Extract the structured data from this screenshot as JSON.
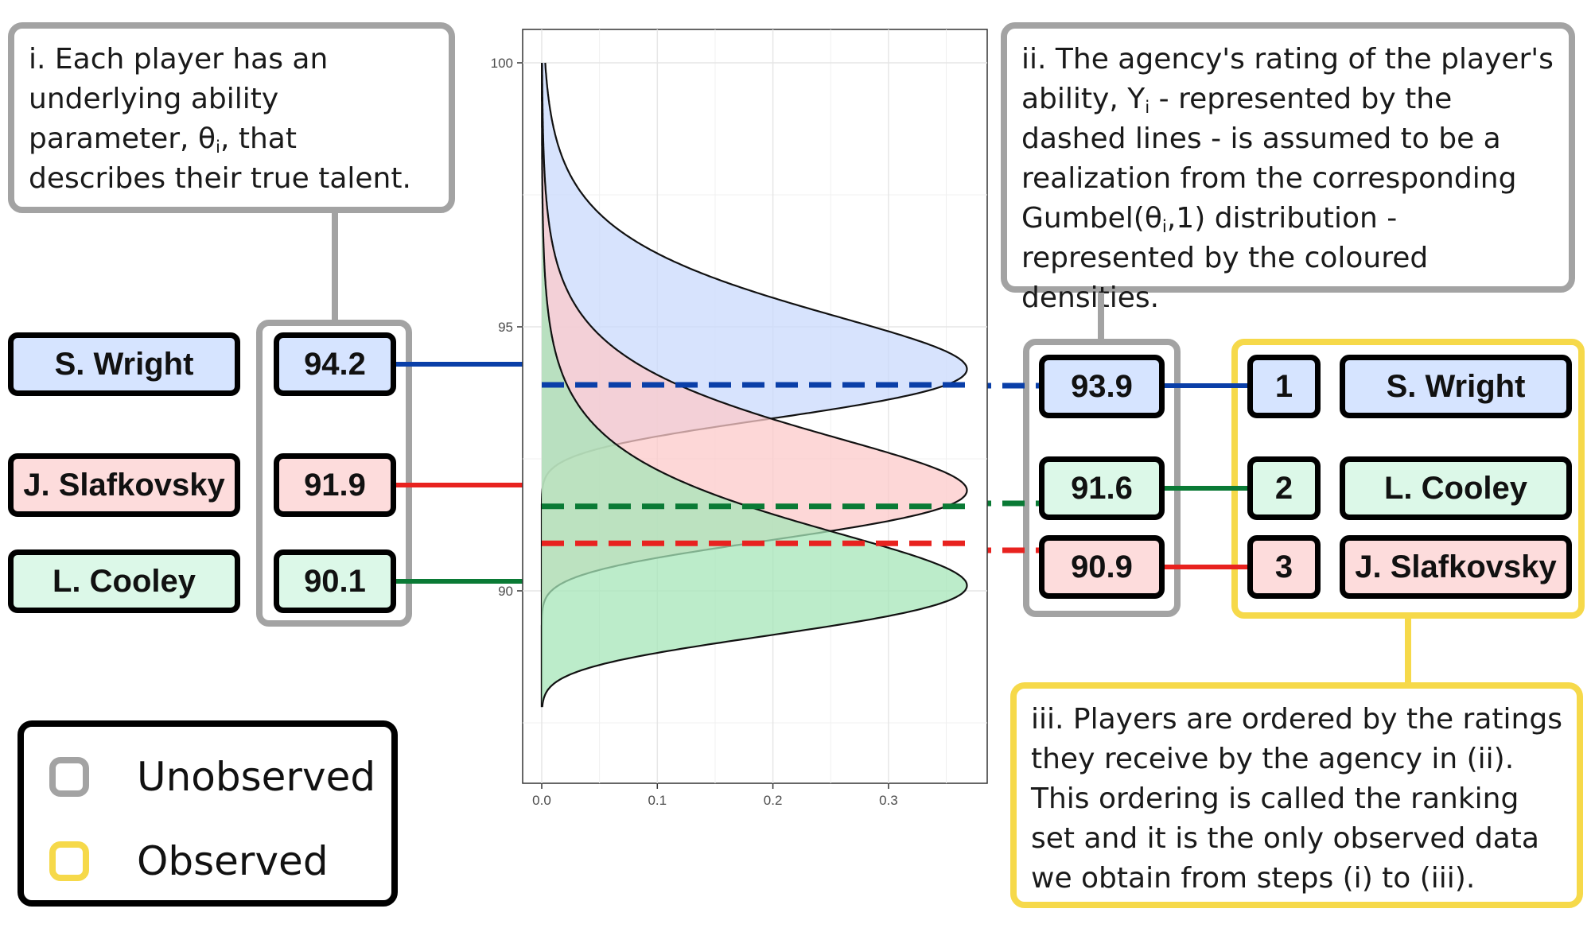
{
  "notes": {
    "i": {
      "pre": "i. Each player has an underlying ability parameter, θ",
      "sub": "i",
      "post": ", that describes their true talent."
    },
    "ii": {
      "pre": "ii. The agency's rating of the player's ability, Y",
      "sub": "i",
      "mid": " - represented by the dashed lines - is assumed to be a realization from the corresponding Gumbel(θ",
      "sub2": "i",
      "post": ",1) distribution - represented by the coloured densities."
    },
    "iii": "iii. Players are ordered by the ratings they receive by the agency in (ii). This ordering is called the ranking set and it is the only observed data we obtain from steps (i) to (iii)."
  },
  "players_left": [
    {
      "name": "S. Wright",
      "theta": "94.2",
      "color": "blue"
    },
    {
      "name": "J. Slafkovsky",
      "theta": "91.9",
      "color": "red"
    },
    {
      "name": "L. Cooley",
      "theta": "90.1",
      "color": "green"
    }
  ],
  "ratings_right": [
    {
      "value": "93.9",
      "color": "blue"
    },
    {
      "value": "91.6",
      "color": "green"
    },
    {
      "value": "90.9",
      "color": "red"
    }
  ],
  "ranking": [
    {
      "rank": "1",
      "name": "S. Wright",
      "color": "blue"
    },
    {
      "rank": "2",
      "name": "L. Cooley",
      "color": "green"
    },
    {
      "rank": "3",
      "name": "J. Slafkovsky",
      "color": "red"
    }
  ],
  "legend": {
    "unobserved": "Unobserved",
    "observed": "Observed"
  },
  "colors": {
    "blue_line": "#0a3fa8",
    "red_line": "#e8221f",
    "green_line": "#0a7a35",
    "blue_fill": "#c9dafc",
    "red_fill": "#fcc9c9",
    "green_fill": "#a6e6b8",
    "unobserved": "#a3a3a3",
    "observed": "#f6d94a"
  },
  "chart_data": {
    "type": "area",
    "xlim": [
      0,
      0.37
    ],
    "ylim": [
      86.5,
      100.5
    ],
    "x_ticks": [
      "0.0",
      "0.1",
      "0.2",
      "0.3"
    ],
    "y_ticks": [
      "90",
      "95",
      "100"
    ],
    "distribution": "Gumbel(theta, 1)",
    "series": [
      {
        "theta": 94.2,
        "observed": 93.9,
        "color": "blue"
      },
      {
        "theta": 91.9,
        "observed": 90.9,
        "color": "red"
      },
      {
        "theta": 90.1,
        "observed": 91.6,
        "color": "green"
      }
    ]
  }
}
